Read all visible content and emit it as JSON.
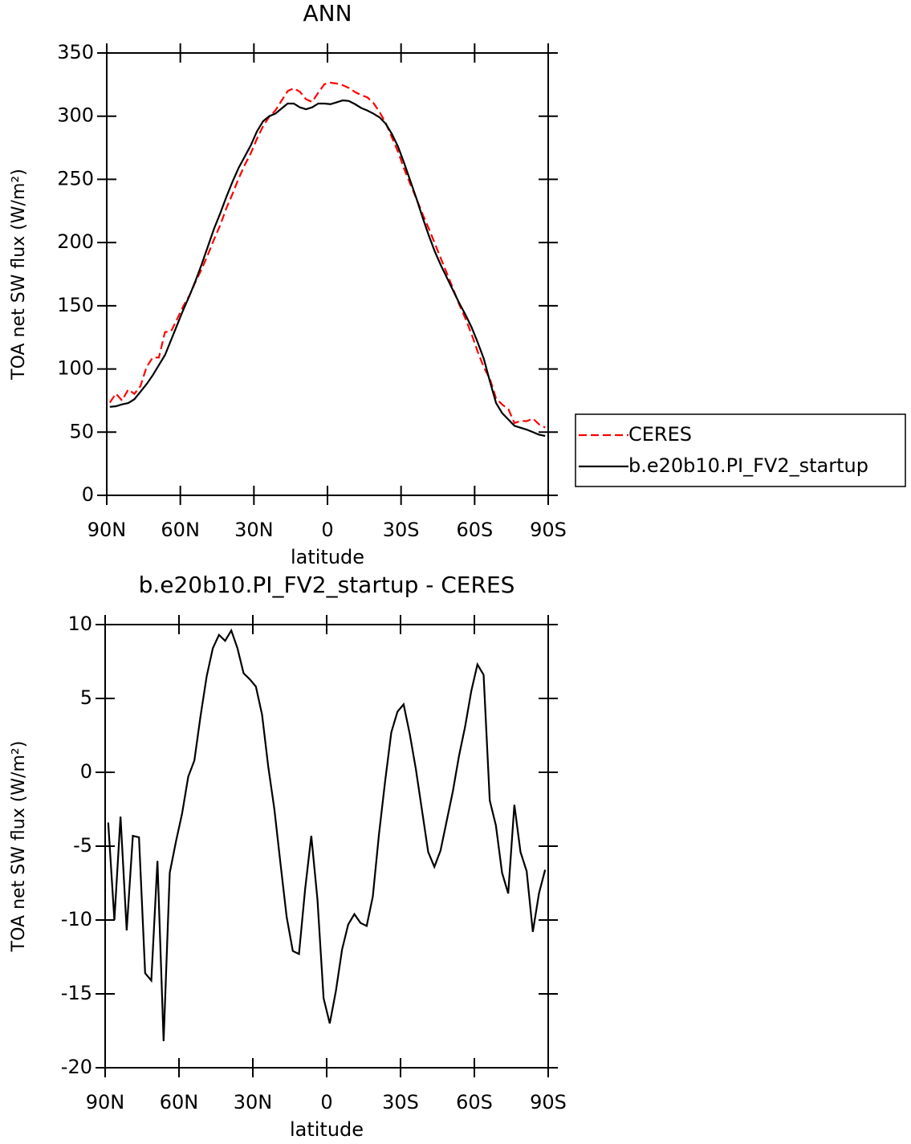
{
  "chart_data": [
    {
      "type": "line",
      "title": "ANN",
      "xlabel": "latitude",
      "ylabel": "TOA net SW flux (W/m²)",
      "x": [
        88.75,
        86.25,
        83.75,
        81.25,
        78.75,
        76.25,
        73.75,
        71.25,
        68.75,
        66.25,
        63.75,
        61.25,
        58.75,
        56.25,
        53.75,
        51.25,
        48.75,
        46.25,
        43.75,
        41.25,
        38.75,
        36.25,
        33.75,
        31.25,
        28.75,
        26.25,
        23.75,
        21.25,
        18.75,
        16.25,
        13.75,
        11.25,
        8.75,
        6.25,
        3.75,
        1.25,
        -1.25,
        -3.75,
        -6.25,
        -8.75,
        -11.25,
        -13.75,
        -16.25,
        -18.75,
        -21.25,
        -23.75,
        -26.25,
        -28.75,
        -31.25,
        -33.75,
        -36.25,
        -38.75,
        -41.25,
        -43.75,
        -46.25,
        -48.75,
        -51.25,
        -53.75,
        -56.25,
        -58.75,
        -61.25,
        -63.75,
        -66.25,
        -68.75,
        -71.25,
        -73.75,
        -76.25,
        -78.75,
        -81.25,
        -83.75,
        -86.25,
        -88.75
      ],
      "series": [
        {
          "name": "CERES",
          "color": "#ff0000",
          "dashed": true,
          "values": [
            73.4,
            80.5,
            75,
            83.7,
            80.3,
            86.4,
            101.6,
            109.1,
            109,
            129.2,
            129.8,
            139.7,
            149.8,
            158.3,
            169.2,
            179.2,
            190.5,
            202.6,
            213.7,
            227.1,
            238.4,
            250.6,
            261.3,
            270.7,
            282.2,
            292.1,
            299.6,
            304.5,
            312.2,
            319.8,
            322.1,
            319.3,
            313.4,
            311.3,
            318.6,
            325.3,
            326.5,
            325.8,
            324.5,
            322.3,
            319.1,
            316.7,
            314.9,
            310.4,
            303.2,
            294.6,
            283.3,
            271.9,
            258.4,
            246.4,
            234.8,
            222.6,
            211.4,
            199.4,
            187.3,
            175.3,
            163.3,
            150.9,
            139.9,
            127.5,
            113.7,
            101.4,
            91.9,
            76.6,
            71.8,
            68.2,
            57.2,
            58.9,
            58.7,
            60.8,
            56.2,
            53.6
          ]
        },
        {
          "name": "b.e20b10.PI_FV2_startup",
          "color": "#000000",
          "dashed": false,
          "values": [
            70,
            70.5,
            72,
            73,
            76,
            82,
            88,
            95,
            103,
            111,
            123,
            135,
            147,
            158,
            170,
            183,
            197,
            211,
            223,
            236,
            248,
            259,
            268,
            277,
            288,
            296,
            300,
            302,
            306,
            310,
            310,
            307,
            305.5,
            307,
            310,
            310,
            309.5,
            311,
            312.5,
            312,
            309.5,
            306.5,
            304.5,
            302,
            299,
            294,
            286,
            276,
            263,
            249,
            235,
            220,
            206,
            193,
            182,
            172,
            162,
            152,
            143,
            133,
            121,
            108,
            90,
            73,
            65,
            60,
            55,
            53.5,
            52,
            50,
            48,
            47
          ]
        }
      ],
      "xlim": [
        90,
        -90
      ],
      "xticks": [
        {
          "value": 90,
          "label": "90N"
        },
        {
          "value": 60,
          "label": "60N"
        },
        {
          "value": 30,
          "label": "30N"
        },
        0,
        {
          "value": -30,
          "label": "30S"
        },
        {
          "value": -60,
          "label": "60S"
        },
        {
          "value": -90,
          "label": "90S"
        }
      ],
      "ylim": [
        0,
        350
      ],
      "yticks": [
        0,
        50,
        100,
        150,
        200,
        250,
        300,
        350
      ],
      "legend": "right"
    },
    {
      "type": "line",
      "title": "b.e20b10.PI_FV2_startup - CERES",
      "xlabel": "latitude",
      "ylabel": "TOA net SW flux (W/m²)",
      "x": [
        88.75,
        86.25,
        83.75,
        81.25,
        78.75,
        76.25,
        73.75,
        71.25,
        68.75,
        66.25,
        63.75,
        61.25,
        58.75,
        56.25,
        53.75,
        51.25,
        48.75,
        46.25,
        43.75,
        41.25,
        38.75,
        36.25,
        33.75,
        31.25,
        28.75,
        26.25,
        23.75,
        21.25,
        18.75,
        16.25,
        13.75,
        11.25,
        8.75,
        6.25,
        3.75,
        1.25,
        -1.25,
        -3.75,
        -6.25,
        -8.75,
        -11.25,
        -13.75,
        -16.25,
        -18.75,
        -21.25,
        -23.75,
        -26.25,
        -28.75,
        -31.25,
        -33.75,
        -36.25,
        -38.75,
        -41.25,
        -43.75,
        -46.25,
        -48.75,
        -51.25,
        -53.75,
        -56.25,
        -58.75,
        -61.25,
        -63.75,
        -66.25,
        -68.75,
        -71.25,
        -73.75,
        -76.25,
        -78.75,
        -81.25,
        -83.75,
        -86.25,
        -88.75
      ],
      "values": [
        -3.4,
        -10,
        -3,
        -10.7,
        -4.3,
        -4.4,
        -13.6,
        -14.1,
        -6,
        -18.2,
        -6.8,
        -4.7,
        -2.8,
        -0.3,
        0.8,
        3.8,
        6.5,
        8.4,
        9.3,
        8.9,
        9.6,
        8.4,
        6.7,
        6.3,
        5.8,
        3.9,
        0.4,
        -2.5,
        -6.2,
        -9.8,
        -12.1,
        -12.3,
        -7.9,
        -4.3,
        -8.6,
        -15.3,
        -17,
        -14.8,
        -12,
        -10.3,
        -9.6,
        -10.2,
        -10.4,
        -8.4,
        -4.2,
        -0.6,
        2.7,
        4.1,
        4.6,
        2.6,
        0.2,
        -2.6,
        -5.4,
        -6.4,
        -5.3,
        -3.3,
        -1.3,
        1.1,
        3.1,
        5.5,
        7.3,
        6.6,
        -1.9,
        -3.6,
        -6.8,
        -8.2,
        -2.2,
        -5.4,
        -6.7,
        -10.8,
        -8.2,
        -6.6
      ],
      "color": "#000000",
      "xlim": [
        90,
        -90
      ],
      "xticks": [
        {
          "value": 90,
          "label": "90N"
        },
        {
          "value": 60,
          "label": "60N"
        },
        {
          "value": 30,
          "label": "30N"
        },
        0,
        {
          "value": -30,
          "label": "30S"
        },
        {
          "value": -60,
          "label": "60S"
        },
        {
          "value": -90,
          "label": "90S"
        }
      ],
      "ylim": [
        -20,
        10
      ],
      "yticks": [
        -20,
        -15,
        -10,
        -5,
        0,
        5,
        10
      ]
    }
  ]
}
